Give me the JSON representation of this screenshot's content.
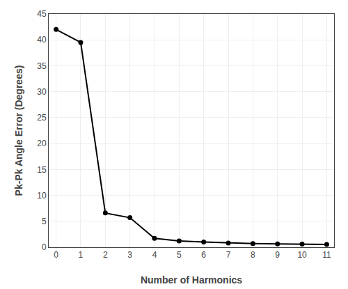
{
  "chart_data": {
    "type": "line",
    "x": [
      0,
      1,
      2,
      3,
      4,
      5,
      6,
      7,
      8,
      9,
      10,
      11
    ],
    "values": [
      42.0,
      39.5,
      6.6,
      5.7,
      1.7,
      1.2,
      1.0,
      0.8,
      0.7,
      0.65,
      0.6,
      0.55
    ],
    "xlabel": "Number of Harmonics",
    "ylabel": "Pk-Pk Angle Error (Degrees)",
    "xlim": [
      -0.3,
      11.3
    ],
    "ylim": [
      0,
      45
    ],
    "xticks": [
      0,
      1,
      2,
      3,
      4,
      5,
      6,
      7,
      8,
      9,
      10,
      11
    ],
    "yticks": [
      0,
      5,
      10,
      15,
      20,
      25,
      30,
      35,
      40,
      45
    ],
    "grid": true,
    "color": "#000000",
    "marker": "circle"
  }
}
